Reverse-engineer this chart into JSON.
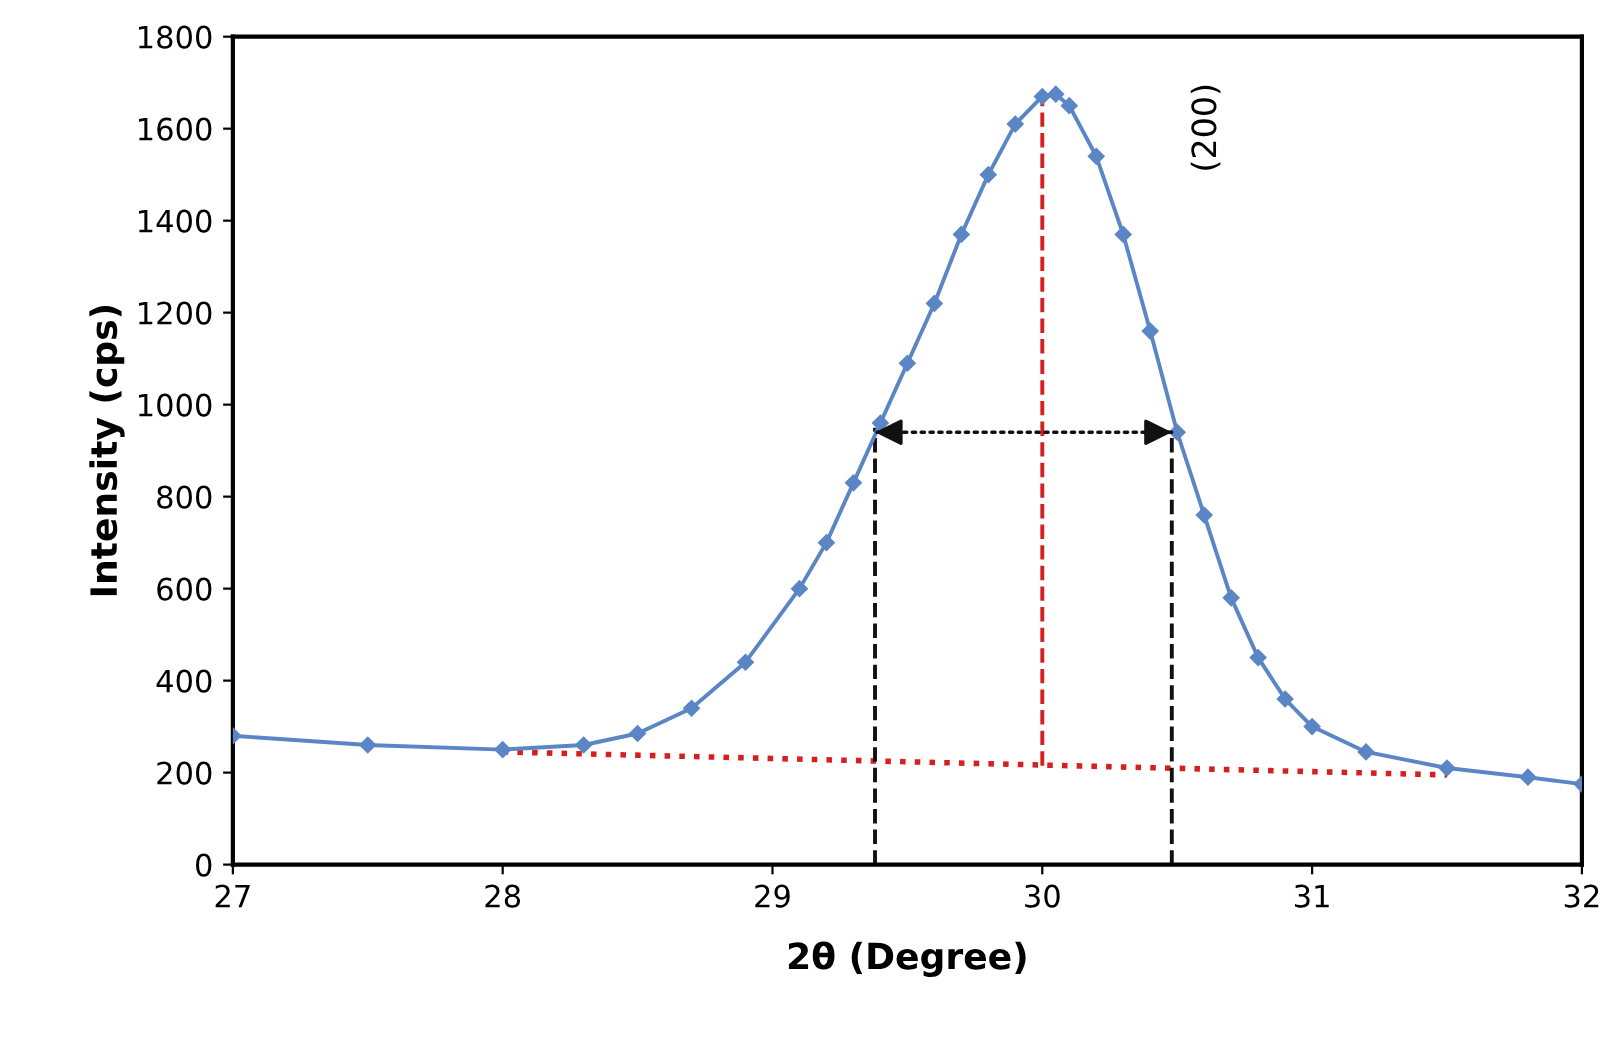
{
  "chart_data": {
    "type": "line",
    "xlabel": "2θ (Degree)",
    "ylabel": "Intensity (cps)",
    "xlim": [
      27,
      32
    ],
    "xticks": [
      27,
      28,
      29,
      30,
      31,
      32
    ],
    "ylim": [
      0,
      1800
    ],
    "yticks": [
      0,
      200,
      400,
      600,
      800,
      1000,
      1200,
      1400,
      1600,
      1800
    ],
    "grid": false,
    "marker": "diamond",
    "series": [
      {
        "color": "#5b86c5",
        "x": [
          27.0,
          27.5,
          28.0,
          28.3,
          28.5,
          28.7,
          28.9,
          29.1,
          29.2,
          29.3,
          29.4,
          29.5,
          29.6,
          29.7,
          29.8,
          29.9,
          30.0,
          30.05,
          30.1,
          30.2,
          30.3,
          30.4,
          30.5,
          30.6,
          30.7,
          30.8,
          30.9,
          31.0,
          31.2,
          31.5,
          31.8,
          32.0
        ],
        "values": [
          280,
          260,
          250,
          260,
          285,
          340,
          440,
          600,
          700,
          830,
          960,
          1090,
          1220,
          1370,
          1500,
          1610,
          1670,
          1675,
          1650,
          1540,
          1370,
          1160,
          940,
          760,
          580,
          450,
          360,
          300,
          245,
          210,
          190,
          175
        ]
      },
      {
        "type": "line",
        "color": "#d62020",
        "line_style": "dashed",
        "marker": "none",
        "x": [
          30,
          30
        ],
        "values": [
          215,
          1670
        ]
      },
      {
        "type": "line",
        "color": "#d62020",
        "line_style": "dotted",
        "marker": "none",
        "x": [
          28,
          31.5
        ],
        "values": [
          245,
          195
        ]
      },
      {
        "type": "line",
        "color": "#111111",
        "line_style": "dashed",
        "marker": "none",
        "x": [
          29.38,
          29.38
        ],
        "values": [
          0,
          950
        ]
      },
      {
        "type": "line",
        "color": "#111111",
        "line_style": "dashed",
        "marker": "none",
        "x": [
          30.48,
          30.48
        ],
        "values": [
          0,
          930
        ]
      }
    ],
    "annotations": [
      "(200)"
    ]
  }
}
